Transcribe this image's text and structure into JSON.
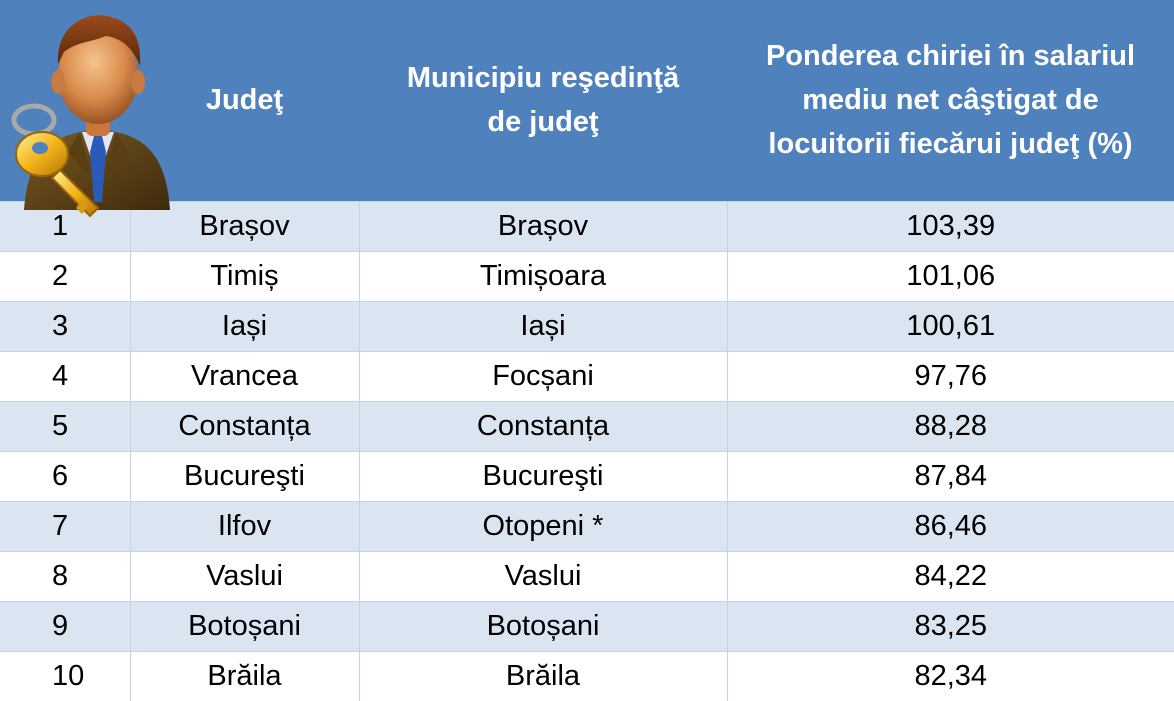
{
  "header": {
    "col_county": "Judeţ",
    "col_city_line1": "Municipiu reşedinţă",
    "col_city_line2": "de judeţ",
    "col_share_line1": "Ponderea chiriei în salariul",
    "col_share_line2": "mediu net câştigat de",
    "col_share_line3": "locuitorii fiecărui judeţ (%)"
  },
  "rows": [
    {
      "rank": "1",
      "county": "Brașov",
      "city": "Brașov",
      "share": "103,39"
    },
    {
      "rank": "2",
      "county": "Timiș",
      "city": "Timișoara",
      "share": "101,06"
    },
    {
      "rank": "3",
      "county": "Iași",
      "city": "Iași",
      "share": "100,61"
    },
    {
      "rank": "4",
      "county": "Vrancea",
      "city": "Focșani",
      "share": "97,76"
    },
    {
      "rank": "5",
      "county": "Constanța",
      "city": "Constanța",
      "share": "88,28"
    },
    {
      "rank": "6",
      "county": "Bucureşti",
      "city": "Bucureşti",
      "share": "87,84"
    },
    {
      "rank": "7",
      "county": "Ilfov",
      "city": "Otopeni *",
      "share": "86,46"
    },
    {
      "rank": "8",
      "county": "Vaslui",
      "city": "Vaslui",
      "share": "84,22"
    },
    {
      "rank": "9",
      "county": "Botoșani",
      "city": "Botoșani",
      "share": "83,25"
    },
    {
      "rank": "10",
      "county": "Brăila",
      "city": "Brăila",
      "share": "82,34"
    }
  ],
  "colors": {
    "header_bg": "#4f81bd",
    "header_text": "#ffffff",
    "band_odd": "#dbe5f1",
    "band_even": "#ffffff"
  },
  "icons": {
    "header_icon": "businessman-with-key-icon"
  }
}
